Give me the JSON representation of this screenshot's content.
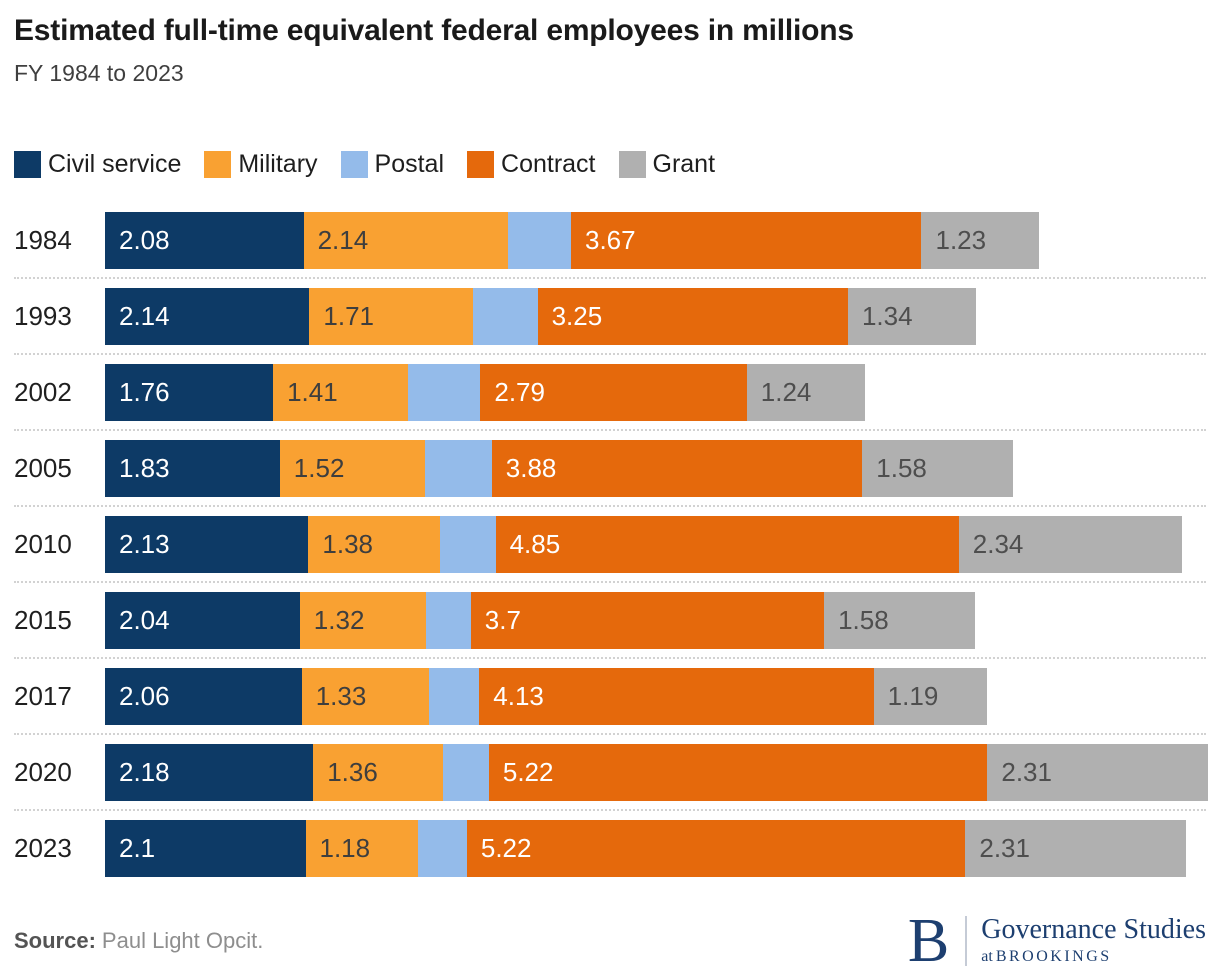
{
  "chart_data": {
    "type": "bar",
    "stacked": true,
    "orientation": "horizontal",
    "title": "Estimated full-time equivalent federal employees in millions",
    "subtitle": "FY 1984 to 2023",
    "legend_position": "top",
    "grid": "off",
    "row_separator": "dotted",
    "xlim": [
      0,
      11.55
    ],
    "categories": [
      "1984",
      "1993",
      "2002",
      "2005",
      "2010",
      "2015",
      "2017",
      "2020",
      "2023"
    ],
    "series": [
      {
        "name": "Civil service",
        "color": "#0d3a66",
        "label_text_color": "#ffffff",
        "values": [
          2.08,
          2.14,
          1.76,
          1.83,
          2.13,
          2.04,
          2.06,
          2.18,
          2.1
        ],
        "labels": [
          "2.08",
          "2.14",
          "1.76",
          "1.83",
          "2.13",
          "2.04",
          "2.06",
          "2.18",
          "2.1"
        ]
      },
      {
        "name": "Military",
        "color": "#f9a132",
        "label_text_color": "#3e3e3e",
        "values": [
          2.14,
          1.71,
          1.41,
          1.52,
          1.38,
          1.32,
          1.33,
          1.36,
          1.18
        ],
        "labels": [
          "2.14",
          "1.71",
          "1.41",
          "1.52",
          "1.38",
          "1.32",
          "1.33",
          "1.36",
          "1.18"
        ]
      },
      {
        "name": "Postal",
        "color": "#94bbea",
        "label_text_color": null,
        "values": [
          0.66,
          0.68,
          0.76,
          0.7,
          0.58,
          0.47,
          0.53,
          0.48,
          0.51
        ],
        "labels": [
          "",
          "",
          "",
          "",
          "",
          "",
          "",
          "",
          ""
        ],
        "values_estimated_from_bar_widths": true
      },
      {
        "name": "Contract",
        "color": "#e5690c",
        "label_text_color": "#ffffff",
        "values": [
          3.67,
          3.25,
          2.79,
          3.88,
          4.85,
          3.7,
          4.13,
          5.22,
          5.22
        ],
        "labels": [
          "3.67",
          "3.25",
          "2.79",
          "3.88",
          "4.85",
          "3.7",
          "4.13",
          "5.22",
          "5.22"
        ]
      },
      {
        "name": "Grant",
        "color": "#b0b0b0",
        "label_text_color": "#4e4e4e",
        "values": [
          1.23,
          1.34,
          1.24,
          1.58,
          2.34,
          1.58,
          1.19,
          2.31,
          2.31
        ],
        "labels": [
          "1.23",
          "1.34",
          "1.24",
          "1.58",
          "2.34",
          "1.58",
          "1.19",
          "2.31",
          "2.31"
        ]
      }
    ]
  },
  "footer": {
    "source_label": "Source:",
    "source_text": "Paul Light Opcit.",
    "logo": {
      "letter": "B",
      "line1": "Governance Studies",
      "line2_prefix": "at",
      "line2_name": "BROOKINGS",
      "color": "#1d3f70"
    }
  }
}
